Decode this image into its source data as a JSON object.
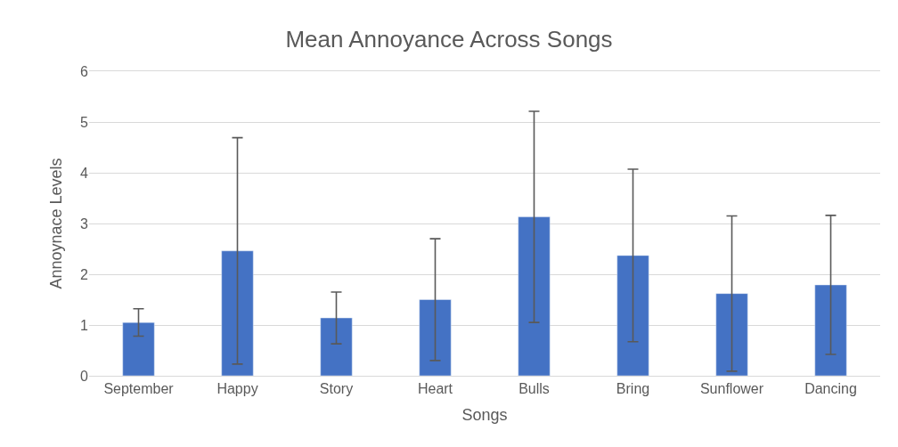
{
  "chart_data": {
    "type": "bar",
    "title": "Mean Annoyance Across Songs",
    "xlabel": "Songs",
    "ylabel": "Annoynace Levels",
    "categories": [
      "September",
      "Happy",
      "Story",
      "Heart",
      "Bulls",
      "Bring",
      "Sunflower",
      "Dancing"
    ],
    "values": [
      1.05,
      2.46,
      1.14,
      1.5,
      3.13,
      2.37,
      1.62,
      1.79
    ],
    "errors": [
      0.27,
      2.23,
      0.51,
      1.2,
      2.08,
      1.7,
      1.53,
      1.37
    ],
    "color": "#4472c4",
    "ylim": [
      0,
      6
    ],
    "yticks": [
      0,
      1,
      2,
      3,
      4,
      5,
      6
    ],
    "grid": "y"
  }
}
